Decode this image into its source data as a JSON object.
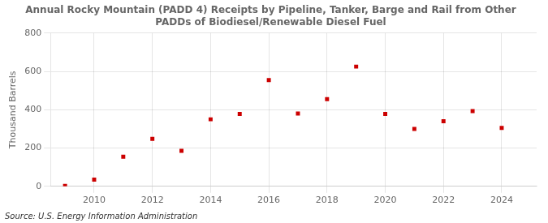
{
  "chart_data": {
    "type": "scatter",
    "title": "Annual Rocky Mountain (PADD 4) Receipts by Pipeline, Tanker, Barge and Rail from Other\nPADDs of Biodiesel/Renewable Diesel Fuel",
    "ylabel": "Thousand Barrels",
    "source": "Source: U.S. Energy Information Administration",
    "x": [
      2009,
      2010,
      2011,
      2012,
      2013,
      2014,
      2015,
      2016,
      2017,
      2018,
      2019,
      2020,
      2021,
      2022,
      2023,
      2024
    ],
    "values": [
      2,
      35,
      155,
      248,
      185,
      350,
      378,
      555,
      380,
      455,
      625,
      378,
      300,
      340,
      393,
      305
    ],
    "color": "#cc0000",
    "marker": "square",
    "xlim": [
      2008.5,
      2025.2
    ],
    "xticks": [
      2010,
      2012,
      2014,
      2016,
      2018,
      2020,
      2022,
      2024
    ],
    "ylim": [
      0,
      800
    ],
    "yticks": [
      0,
      200,
      400,
      600,
      800
    ],
    "grid": true
  }
}
